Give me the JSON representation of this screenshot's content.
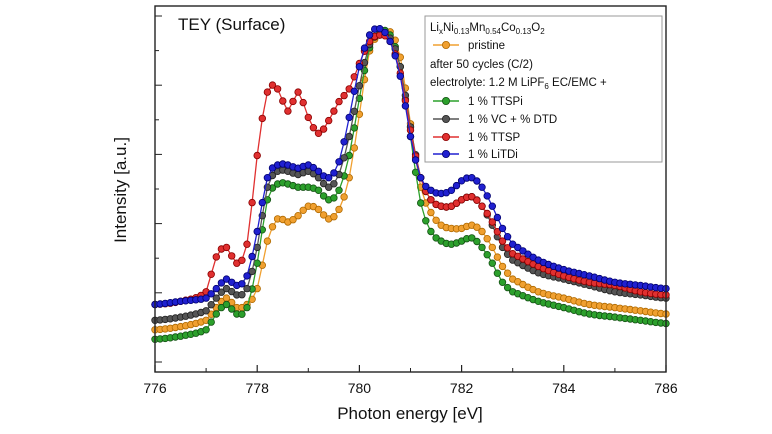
{
  "chart_data": {
    "type": "line",
    "title": "TEY (Surface)",
    "xlabel": "Photon energy [eV]",
    "ylabel": "Intensity [a.u.]",
    "xlim": [
      776,
      786
    ],
    "ylim": [
      0,
      1.06
    ],
    "x_ticks": [
      "776",
      "778",
      "780",
      "782",
      "784",
      "786"
    ],
    "y_tick_labels_shown": false,
    "legend": {
      "placement": "top-right",
      "header": {
        "formula_parts": [
          {
            "t": "Li",
            "sub": false
          },
          {
            "t": "x",
            "sub": true
          },
          {
            "t": "Ni",
            "sub": false
          },
          {
            "t": "0.13",
            "sub": true
          },
          {
            "t": "Mn",
            "sub": false
          },
          {
            "t": "0.54",
            "sub": true
          },
          {
            "t": "Co",
            "sub": false
          },
          {
            "t": "0.13",
            "sub": true
          },
          {
            "t": "O",
            "sub": false
          },
          {
            "t": "2",
            "sub": true
          }
        ],
        "line_after_cycles": "after 50 cycles (C/2)",
        "electrolyte_parts": [
          {
            "t": "electrolyte: 1.2 M LiPF",
            "sub": false
          },
          {
            "t": "6",
            "sub": true
          },
          {
            "t": " EC/EMC +",
            "sub": false
          }
        ]
      }
    },
    "x": [
      776.0,
      776.5,
      777.0,
      777.2,
      777.4,
      777.6,
      777.8,
      778.0,
      778.2,
      778.4,
      778.6,
      778.8,
      779.0,
      779.2,
      779.4,
      779.6,
      779.8,
      780.0,
      780.2,
      780.4,
      780.6,
      780.8,
      781.0,
      781.2,
      781.4,
      781.6,
      781.8,
      782.0,
      782.2,
      782.4,
      782.6,
      782.8,
      783.0,
      783.5,
      784.0,
      784.5,
      785.0,
      785.5,
      786.0
    ],
    "series": [
      {
        "name": "pristine",
        "color": "#f0a030",
        "edge": "#b06a00",
        "values": [
          0.07,
          0.08,
          0.1,
          0.14,
          0.17,
          0.14,
          0.15,
          0.2,
          0.35,
          0.42,
          0.41,
          0.43,
          0.46,
          0.45,
          0.42,
          0.45,
          0.55,
          0.75,
          0.95,
          1.0,
          1.01,
          0.93,
          0.72,
          0.52,
          0.44,
          0.4,
          0.39,
          0.39,
          0.4,
          0.38,
          0.33,
          0.27,
          0.23,
          0.19,
          0.17,
          0.15,
          0.14,
          0.13,
          0.12
        ]
      },
      {
        "name": "1 % TTSPi",
        "color": "#2ca02c",
        "edge": "#145214",
        "values": [
          0.04,
          0.05,
          0.07,
          0.12,
          0.15,
          0.12,
          0.14,
          0.28,
          0.48,
          0.53,
          0.53,
          0.52,
          0.52,
          0.51,
          0.48,
          0.51,
          0.62,
          0.8,
          0.96,
          1.01,
          1.0,
          0.9,
          0.68,
          0.47,
          0.38,
          0.35,
          0.34,
          0.35,
          0.36,
          0.33,
          0.28,
          0.22,
          0.19,
          0.16,
          0.14,
          0.12,
          0.11,
          0.1,
          0.09
        ]
      },
      {
        "name": "1 % VC + % DTD",
        "color": "#555555",
        "edge": "#222222",
        "values": [
          0.1,
          0.11,
          0.13,
          0.17,
          0.2,
          0.18,
          0.2,
          0.33,
          0.52,
          0.57,
          0.57,
          0.56,
          0.57,
          0.55,
          0.52,
          0.56,
          0.68,
          0.84,
          0.97,
          1.0,
          0.99,
          0.9,
          0.71,
          0.55,
          0.48,
          0.46,
          0.46,
          0.48,
          0.49,
          0.46,
          0.4,
          0.33,
          0.29,
          0.25,
          0.23,
          0.21,
          0.19,
          0.18,
          0.17
        ]
      },
      {
        "name": "1 % TTSP",
        "color": "#e03030",
        "edge": "#8b0000",
        "values": [
          0.15,
          0.16,
          0.19,
          0.3,
          0.33,
          0.28,
          0.34,
          0.62,
          0.82,
          0.83,
          0.76,
          0.82,
          0.74,
          0.69,
          0.73,
          0.79,
          0.83,
          0.91,
          0.98,
          1.0,
          0.98,
          0.88,
          0.7,
          0.55,
          0.48,
          0.46,
          0.46,
          0.48,
          0.49,
          0.46,
          0.41,
          0.35,
          0.31,
          0.27,
          0.24,
          0.22,
          0.21,
          0.19,
          0.18
        ]
      },
      {
        "name": "1 % LiTDi",
        "color": "#2020d0",
        "edge": "#000070",
        "values": [
          0.15,
          0.16,
          0.17,
          0.2,
          0.23,
          0.21,
          0.24,
          0.38,
          0.55,
          0.59,
          0.59,
          0.58,
          0.59,
          0.57,
          0.55,
          0.6,
          0.74,
          0.9,
          1.0,
          1.02,
          0.98,
          0.87,
          0.68,
          0.55,
          0.51,
          0.5,
          0.51,
          0.54,
          0.55,
          0.52,
          0.46,
          0.39,
          0.34,
          0.29,
          0.26,
          0.24,
          0.22,
          0.21,
          0.2
        ]
      }
    ]
  }
}
